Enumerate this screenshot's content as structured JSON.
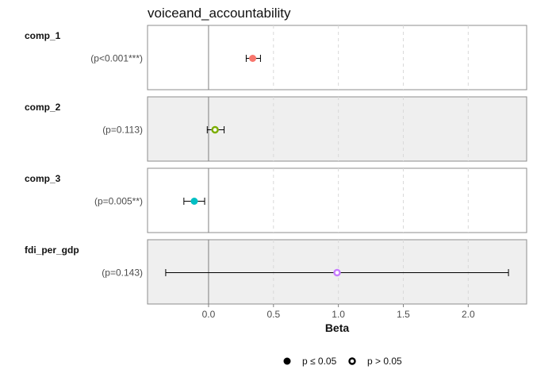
{
  "chart_data": {
    "type": "forest",
    "title": "voiceand_accountability",
    "xlabel": "Beta",
    "xlim": [
      -0.47,
      2.45
    ],
    "x_ticks": [
      0.0,
      0.5,
      1.0,
      1.5,
      2.0
    ],
    "x_tick_labels": [
      "0.0",
      "0.5",
      "1.0",
      "1.5",
      "2.0"
    ],
    "reference_line": 0,
    "grid": "vertical dashed",
    "rows": [
      {
        "name": "comp_1",
        "p_label": "(p<0.001***)",
        "estimate": 0.34,
        "ci_low": 0.29,
        "ci_high": 0.4,
        "significant": true,
        "color": "#f8766d",
        "shaded": false
      },
      {
        "name": "comp_2",
        "p_label": "(p=0.113)",
        "estimate": 0.05,
        "ci_low": -0.01,
        "ci_high": 0.12,
        "significant": false,
        "color": "#7cae00",
        "shaded": true
      },
      {
        "name": "comp_3",
        "p_label": "(p=0.005**)",
        "estimate": -0.11,
        "ci_low": -0.19,
        "ci_high": -0.03,
        "significant": true,
        "color": "#00bfc4",
        "shaded": false
      },
      {
        "name": "fdi_per_gdp",
        "p_label": "(p=0.143)",
        "estimate": 0.99,
        "ci_low": -0.33,
        "ci_high": 2.31,
        "significant": false,
        "color": "#c77cff",
        "shaded": true
      }
    ],
    "legend": {
      "position": "bottom",
      "items": [
        {
          "label": "p ≤ 0.05",
          "marker": "filled-circle"
        },
        {
          "label": "p > 0.05",
          "marker": "hollow-circle"
        }
      ]
    }
  }
}
